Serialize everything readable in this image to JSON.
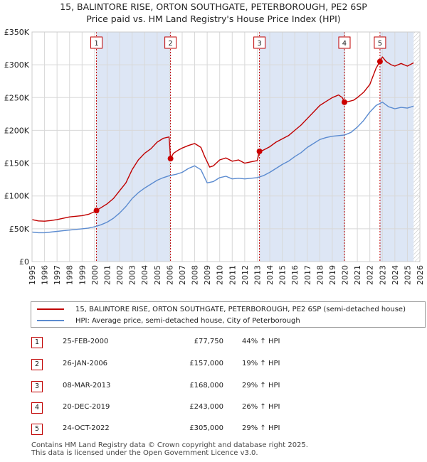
{
  "title_line1": "15, BALINTORE RISE, ORTON SOUTHGATE, PETERBOROUGH, PE2 6SP",
  "title_line2": "Price paid vs. HM Land Registry's House Price Index (HPI)",
  "legend": {
    "price_label": "15, BALINTORE RISE, ORTON SOUTHGATE, PETERBOROUGH, PE2 6SP (semi-detached house)",
    "hpi_label": "HPI: Average price, semi-detached house, City of Peterborough"
  },
  "colors": {
    "price": "#c00000",
    "hpi": "#5b8bd0",
    "shade": "#dde6f5",
    "marker": "#cc0000"
  },
  "transactions": [
    {
      "num": "1",
      "date": "25-FEB-2000",
      "price": "£77,750",
      "hpi": "44% ↑ HPI"
    },
    {
      "num": "2",
      "date": "26-JAN-2006",
      "price": "£157,000",
      "hpi": "19% ↑ HPI"
    },
    {
      "num": "3",
      "date": "08-MAR-2013",
      "price": "£168,000",
      "hpi": "29% ↑ HPI"
    },
    {
      "num": "4",
      "date": "20-DEC-2019",
      "price": "£243,000",
      "hpi": "26% ↑ HPI"
    },
    {
      "num": "5",
      "date": "24-OCT-2022",
      "price": "£305,000",
      "hpi": "29% ↑ HPI"
    }
  ],
  "footer_line1": "Contains HM Land Registry data © Crown copyright and database right 2025.",
  "footer_line2": "This data is licensed under the Open Government Licence v3.0.",
  "chart_data": {
    "type": "line",
    "title": "15, BALINTORE RISE, ORTON SOUTHGATE, PETERBOROUGH, PE2 6SP",
    "subtitle": "Price paid vs. HM Land Registry's House Price Index (HPI)",
    "xlabel": "",
    "ylabel": "",
    "xlim": [
      1995,
      2026
    ],
    "ylim": [
      0,
      350000
    ],
    "y_ticks": [
      {
        "v": 0,
        "label": "£0"
      },
      {
        "v": 50000,
        "label": "£50K"
      },
      {
        "v": 100000,
        "label": "£100K"
      },
      {
        "v": 150000,
        "label": "£150K"
      },
      {
        "v": 200000,
        "label": "£200K"
      },
      {
        "v": 250000,
        "label": "£250K"
      },
      {
        "v": 300000,
        "label": "£300K"
      },
      {
        "v": 350000,
        "label": "£350K"
      }
    ],
    "x_ticks": [
      "1995",
      "1996",
      "1997",
      "1998",
      "1999",
      "2000",
      "2001",
      "2002",
      "2003",
      "2004",
      "2005",
      "2006",
      "2007",
      "2008",
      "2009",
      "2010",
      "2011",
      "2012",
      "2013",
      "2014",
      "2015",
      "2016",
      "2017",
      "2018",
      "2019",
      "2020",
      "2021",
      "2022",
      "2023",
      "2024",
      "2025",
      "2026"
    ],
    "grid": true,
    "legend_position": "bottom",
    "shaded_periods": [
      [
        2000.15,
        2006.07
      ],
      [
        2013.18,
        2019.97
      ],
      [
        2022.81,
        2025.5
      ]
    ],
    "hatched_from": 2025.5,
    "sales": [
      {
        "label": "1",
        "x": 2000.15,
        "y": 77750
      },
      {
        "label": "2",
        "x": 2006.07,
        "y": 157000
      },
      {
        "label": "3",
        "x": 2013.18,
        "y": 168000
      },
      {
        "label": "4",
        "x": 2019.97,
        "y": 243000
      },
      {
        "label": "5",
        "x": 2022.81,
        "y": 305000
      }
    ],
    "series": [
      {
        "name": "15, BALINTORE RISE, ORTON SOUTHGATE, PETERBOROUGH, PE2 6SP (semi-detached house)",
        "points": [
          [
            1995.0,
            64000
          ],
          [
            1995.5,
            62000
          ],
          [
            1996.0,
            61500
          ],
          [
            1996.5,
            62500
          ],
          [
            1997.0,
            64000
          ],
          [
            1997.5,
            66000
          ],
          [
            1998.0,
            68000
          ],
          [
            1998.5,
            69000
          ],
          [
            1999.0,
            70000
          ],
          [
            1999.5,
            72000
          ],
          [
            2000.0,
            76000
          ],
          [
            2000.15,
            77750
          ],
          [
            2000.5,
            82000
          ],
          [
            2001.0,
            88000
          ],
          [
            2001.5,
            96000
          ],
          [
            2002.0,
            108000
          ],
          [
            2002.5,
            120000
          ],
          [
            2003.0,
            140000
          ],
          [
            2003.5,
            155000
          ],
          [
            2004.0,
            165000
          ],
          [
            2004.5,
            172000
          ],
          [
            2005.0,
            182000
          ],
          [
            2005.5,
            188000
          ],
          [
            2005.95,
            190000
          ],
          [
            2006.0,
            178000
          ],
          [
            2006.07,
            157000
          ],
          [
            2006.3,
            165000
          ],
          [
            2006.7,
            170000
          ],
          [
            2007.0,
            173000
          ],
          [
            2007.5,
            177000
          ],
          [
            2008.0,
            180000
          ],
          [
            2008.5,
            174000
          ],
          [
            2008.8,
            160000
          ],
          [
            2009.2,
            144000
          ],
          [
            2009.5,
            146000
          ],
          [
            2010.0,
            155000
          ],
          [
            2010.5,
            158000
          ],
          [
            2011.0,
            153000
          ],
          [
            2011.5,
            155000
          ],
          [
            2012.0,
            150000
          ],
          [
            2012.5,
            152000
          ],
          [
            2013.0,
            154000
          ],
          [
            2013.18,
            168000
          ],
          [
            2013.5,
            170000
          ],
          [
            2014.0,
            175000
          ],
          [
            2014.5,
            182000
          ],
          [
            2015.0,
            187000
          ],
          [
            2015.5,
            192000
          ],
          [
            2016.0,
            200000
          ],
          [
            2016.5,
            208000
          ],
          [
            2017.0,
            218000
          ],
          [
            2017.5,
            228000
          ],
          [
            2018.0,
            238000
          ],
          [
            2018.5,
            244000
          ],
          [
            2019.0,
            250000
          ],
          [
            2019.5,
            254000
          ],
          [
            2019.8,
            250000
          ],
          [
            2019.97,
            243000
          ],
          [
            2020.3,
            244000
          ],
          [
            2020.7,
            246000
          ],
          [
            2021.0,
            250000
          ],
          [
            2021.5,
            258000
          ],
          [
            2022.0,
            270000
          ],
          [
            2022.5,
            295000
          ],
          [
            2022.81,
            305000
          ],
          [
            2023.0,
            312000
          ],
          [
            2023.3,
            305000
          ],
          [
            2023.7,
            300000
          ],
          [
            2024.0,
            298000
          ],
          [
            2024.5,
            302000
          ],
          [
            2025.0,
            298000
          ],
          [
            2025.5,
            303000
          ]
        ]
      },
      {
        "name": "HPI: Average price, semi-detached house, City of Peterborough",
        "points": [
          [
            1995.0,
            45000
          ],
          [
            1995.5,
            44000
          ],
          [
            1996.0,
            44000
          ],
          [
            1996.5,
            45000
          ],
          [
            1997.0,
            46000
          ],
          [
            1997.5,
            47000
          ],
          [
            1998.0,
            48000
          ],
          [
            1998.5,
            49000
          ],
          [
            1999.0,
            50000
          ],
          [
            1999.5,
            51000
          ],
          [
            2000.0,
            53000
          ],
          [
            2000.5,
            56000
          ],
          [
            2001.0,
            60000
          ],
          [
            2001.5,
            66000
          ],
          [
            2002.0,
            74000
          ],
          [
            2002.5,
            84000
          ],
          [
            2003.0,
            96000
          ],
          [
            2003.5,
            105000
          ],
          [
            2004.0,
            112000
          ],
          [
            2004.5,
            118000
          ],
          [
            2005.0,
            124000
          ],
          [
            2005.5,
            128000
          ],
          [
            2006.0,
            131000
          ],
          [
            2006.5,
            133000
          ],
          [
            2007.0,
            136000
          ],
          [
            2007.5,
            142000
          ],
          [
            2008.0,
            146000
          ],
          [
            2008.5,
            140000
          ],
          [
            2009.0,
            120000
          ],
          [
            2009.5,
            122000
          ],
          [
            2010.0,
            128000
          ],
          [
            2010.5,
            130000
          ],
          [
            2011.0,
            126000
          ],
          [
            2011.5,
            127000
          ],
          [
            2012.0,
            126000
          ],
          [
            2012.5,
            127000
          ],
          [
            2013.0,
            128000
          ],
          [
            2013.5,
            131000
          ],
          [
            2014.0,
            136000
          ],
          [
            2014.5,
            142000
          ],
          [
            2015.0,
            148000
          ],
          [
            2015.5,
            153000
          ],
          [
            2016.0,
            160000
          ],
          [
            2016.5,
            166000
          ],
          [
            2017.0,
            174000
          ],
          [
            2017.5,
            180000
          ],
          [
            2018.0,
            186000
          ],
          [
            2018.5,
            189000
          ],
          [
            2019.0,
            191000
          ],
          [
            2019.5,
            192000
          ],
          [
            2020.0,
            193000
          ],
          [
            2020.5,
            197000
          ],
          [
            2021.0,
            205000
          ],
          [
            2021.5,
            215000
          ],
          [
            2022.0,
            228000
          ],
          [
            2022.5,
            238000
          ],
          [
            2023.0,
            243000
          ],
          [
            2023.5,
            236000
          ],
          [
            2024.0,
            233000
          ],
          [
            2024.5,
            235000
          ],
          [
            2025.0,
            234000
          ],
          [
            2025.5,
            237000
          ]
        ]
      }
    ]
  }
}
